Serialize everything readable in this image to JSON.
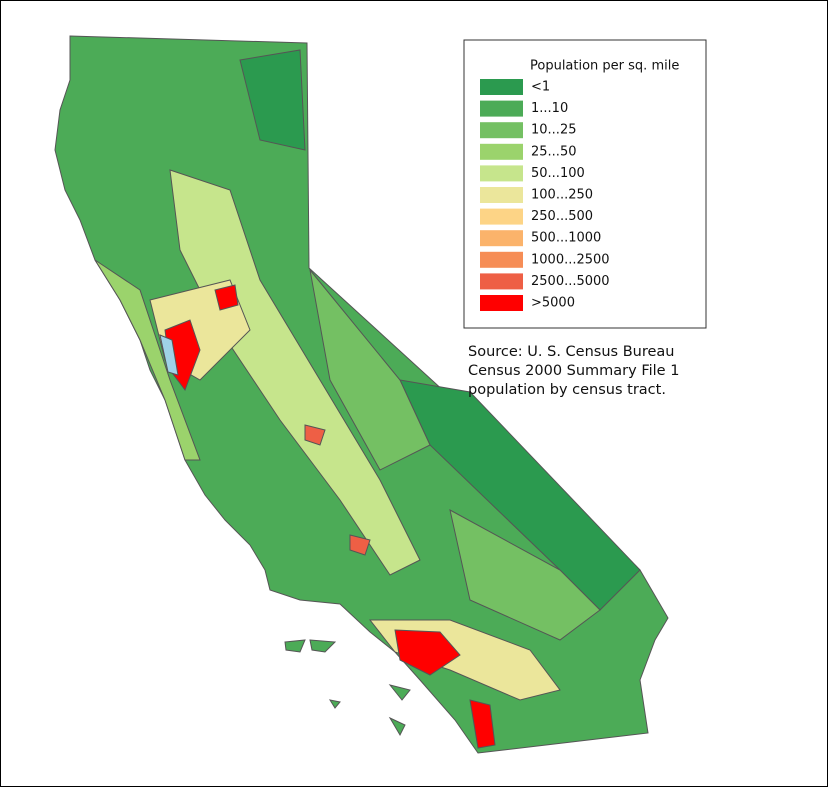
{
  "legend": {
    "title": "Population per sq. mile",
    "items": [
      {
        "label": "<1",
        "color": "#2b9a4f"
      },
      {
        "label": "1...10",
        "color": "#4cab57"
      },
      {
        "label": "10...25",
        "color": "#74c063"
      },
      {
        "label": "25...50",
        "color": "#9bd36c"
      },
      {
        "label": "50...100",
        "color": "#c6e58c"
      },
      {
        "label": "100...250",
        "color": "#ebe69b"
      },
      {
        "label": "250...500",
        "color": "#fdd486"
      },
      {
        "label": "500...1000",
        "color": "#fbb36b"
      },
      {
        "label": "1000...2500",
        "color": "#f68d56"
      },
      {
        "label": "2500...5000",
        "color": "#ee5f45"
      },
      {
        "label": ">5000",
        "color": "#ff0000"
      }
    ]
  },
  "source": [
    "Source: U. S. Census Bureau",
    "Census 2000 Summary File 1",
    "population by census tract."
  ]
}
